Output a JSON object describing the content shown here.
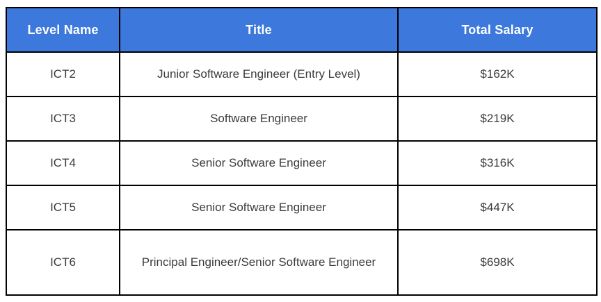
{
  "chart_data": {
    "type": "table",
    "columns": [
      "Level Name",
      "Title",
      "Total Salary"
    ],
    "rows": [
      [
        "ICT2",
        "Junior Software Engineer (Entry Level)",
        "$162K"
      ],
      [
        "ICT3",
        "Software Engineer",
        "$219K"
      ],
      [
        "ICT4",
        "Senior Software Engineer",
        "$316K"
      ],
      [
        "ICT5",
        "Senior Software Engineer",
        "$447K"
      ],
      [
        "ICT6",
        "Principal Engineer/Senior Software Engineer",
        "$698K"
      ]
    ]
  },
  "table": {
    "headers": {
      "level": "Level Name",
      "title": "Title",
      "salary": "Total Salary"
    },
    "rows": [
      {
        "level": "ICT2",
        "title": "Junior Software Engineer (Entry Level)",
        "salary": "$162K"
      },
      {
        "level": "ICT3",
        "title": "Software Engineer",
        "salary": "$219K"
      },
      {
        "level": "ICT4",
        "title": "Senior Software Engineer",
        "salary": "$316K"
      },
      {
        "level": "ICT5",
        "title": "Senior Software Engineer",
        "salary": "$447K"
      },
      {
        "level": "ICT6",
        "title": "Principal Engineer/Senior Software Engineer",
        "salary": "$698K"
      }
    ],
    "colors": {
      "header_bg": "#3d79dd",
      "header_text": "#ffffff",
      "body_text": "#3b3b3b",
      "border": "#000000"
    }
  }
}
